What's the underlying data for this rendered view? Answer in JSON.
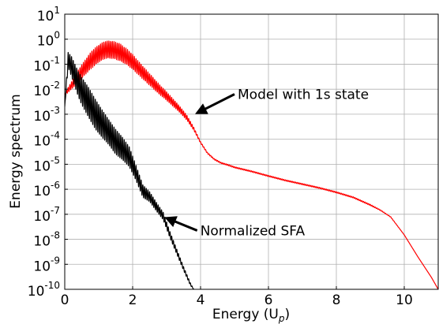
{
  "chart_data": {
    "type": "line",
    "title": "",
    "xlabel": "Energy (U",
    "xlabel_subscript": "p",
    "xlabel_suffix": ")",
    "ylabel": "Energy spectrum",
    "xlim": [
      0,
      11
    ],
    "ylim_exponent": [
      -10,
      1
    ],
    "yscale": "log",
    "grid": true,
    "x_ticks": [
      {
        "value": 0,
        "label": "0"
      },
      {
        "value": 2,
        "label": "2"
      },
      {
        "value": 4,
        "label": "4"
      },
      {
        "value": 6,
        "label": "6"
      },
      {
        "value": 8,
        "label": "8"
      },
      {
        "value": 10,
        "label": "10"
      }
    ],
    "y_ticks": [
      {
        "exp": 1,
        "base": "10",
        "sup": "1"
      },
      {
        "exp": 0,
        "base": "10",
        "sup": "0"
      },
      {
        "exp": -1,
        "base": "10",
        "sup": "-1"
      },
      {
        "exp": -2,
        "base": "10",
        "sup": "-2"
      },
      {
        "exp": -3,
        "base": "10",
        "sup": "-3"
      },
      {
        "exp": -4,
        "base": "10",
        "sup": "-4"
      },
      {
        "exp": -5,
        "base": "10",
        "sup": "-5"
      },
      {
        "exp": -6,
        "base": "10",
        "sup": "-6"
      },
      {
        "exp": -7,
        "base": "10",
        "sup": "-7"
      },
      {
        "exp": -8,
        "base": "10",
        "sup": "-8"
      },
      {
        "exp": -9,
        "base": "10",
        "sup": "-9"
      },
      {
        "exp": -10,
        "base": "10",
        "sup": "-10"
      }
    ],
    "series": [
      {
        "name": "Model with 1s state",
        "color": "#ff0000",
        "x": [
          0,
          0.2,
          0.4,
          0.6,
          0.8,
          1.0,
          1.2,
          1.4,
          1.6,
          1.8,
          2.0,
          2.2,
          2.4,
          2.6,
          2.8,
          3.0,
          3.2,
          3.4,
          3.6,
          3.8,
          4.0,
          4.2,
          4.4,
          4.6,
          4.8,
          5.0,
          5.5,
          6.0,
          6.5,
          7.0,
          7.5,
          8.0,
          8.5,
          9.0,
          9.3,
          9.6,
          10.0,
          10.4,
          10.8,
          11.0
        ],
        "y": [
          0.007,
          0.02,
          0.06,
          0.15,
          0.35,
          0.6,
          0.85,
          0.85,
          0.7,
          0.45,
          0.25,
          0.12,
          0.06,
          0.03,
          0.015,
          0.008,
          0.004,
          0.002,
          0.0009,
          0.0003,
          8e-05,
          3e-05,
          1.7e-05,
          1.2e-05,
          1e-05,
          8e-06,
          5.5e-06,
          3.6e-06,
          2.4e-06,
          1.7e-06,
          1.2e-06,
          8e-07,
          5e-07,
          2.5e-07,
          1.5e-07,
          8e-08,
          1.5e-08,
          2e-09,
          3e-10,
          1e-10
        ],
        "osc_amp": [
          0.1,
          0.3,
          0.5,
          0.6,
          0.7,
          0.7,
          0.7,
          0.7,
          0.7,
          0.65,
          0.6,
          0.55,
          0.5,
          0.45,
          0.4,
          0.35,
          0.3,
          0.25,
          0.2,
          0.12,
          0.06,
          0.05,
          0.05,
          0.05,
          0.05,
          0.05,
          0.05,
          0.05,
          0.05,
          0.05,
          0.05,
          0.05,
          0.05,
          0.05,
          0.03,
          0.02,
          0,
          0,
          0,
          0
        ]
      },
      {
        "name": "Normalized SFA",
        "color": "#000000",
        "x": [
          0,
          0.1,
          0.2,
          0.3,
          0.4,
          0.5,
          0.7,
          0.9,
          1.1,
          1.3,
          1.5,
          1.7,
          1.9,
          2.1,
          2.3,
          2.5,
          2.7,
          2.9,
          3.1,
          3.3,
          3.5,
          3.7,
          3.8
        ],
        "y": [
          0.002,
          0.3,
          0.2,
          0.1,
          0.05,
          0.03,
          0.012,
          0.004,
          0.0015,
          0.0006,
          0.00025,
          0.00012,
          5e-05,
          9e-06,
          1.5e-06,
          8e-07,
          3e-07,
          1.2e-07,
          2e-08,
          4e-09,
          8e-10,
          1.8e-10,
          1e-10
        ],
        "osc_amp": [
          0,
          0.6,
          0.8,
          0.9,
          1.0,
          1.1,
          1.2,
          1.2,
          1.1,
          1.0,
          1.0,
          0.9,
          0.8,
          0.6,
          0.5,
          0.4,
          0.35,
          0.3,
          0.25,
          0.2,
          0.15,
          0.1,
          0
        ]
      }
    ],
    "annotations": [
      {
        "text": "Model with 1s state",
        "arrow_from": [
          5.0,
          -2.2
        ],
        "arrow_to": [
          3.9,
          -2.95
        ]
      },
      {
        "text": "Normalized SFA",
        "arrow_from": [
          3.9,
          -7.65
        ],
        "arrow_to": [
          3.0,
          -7.15
        ]
      }
    ]
  }
}
